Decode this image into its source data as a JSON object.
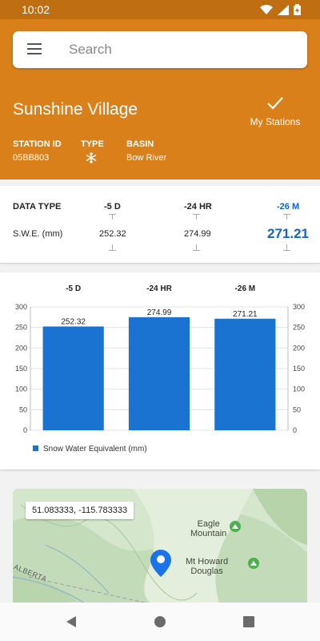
{
  "status_bar": {
    "time": "10:02"
  },
  "search": {
    "placeholder": "Search"
  },
  "station": {
    "name": "Sunshine Village",
    "my_stations_label": "My Stations",
    "id_label": "STATION ID",
    "id": "05BB803",
    "type_label": "TYPE",
    "type_icon": "snowflake-icon",
    "basin_label": "BASIN",
    "basin": "Bow River"
  },
  "data_table": {
    "header_label": "DATA TYPE",
    "columns": [
      "-5 D",
      "-24 HR",
      "-26 M"
    ],
    "row_label": "S.W.E. (mm)",
    "values": [
      "252.32",
      "274.99",
      "271.21"
    ],
    "accent": "#1565c0"
  },
  "chart_data": {
    "type": "bar",
    "categories": [
      "-5 D",
      "-24 HR",
      "-26 M"
    ],
    "series": [
      {
        "name": "Snow Water Equivalent (mm)",
        "values": [
          252.32,
          274.99,
          271.21
        ]
      }
    ],
    "data_labels": [
      "252.32",
      "274.99",
      "271.21"
    ],
    "ylim": [
      0,
      300
    ],
    "yticks": [
      0,
      50,
      100,
      150,
      200,
      250,
      300
    ],
    "grid": true,
    "legend": "bottom-left",
    "bar_color": "#1a73d0"
  },
  "map": {
    "coordinates": "51.083333, -115.783333",
    "labels": {
      "eagle": "Eagle\nMountain",
      "howard": "Mt Howard\nDouglas",
      "alberta": "ALBERTA"
    }
  }
}
